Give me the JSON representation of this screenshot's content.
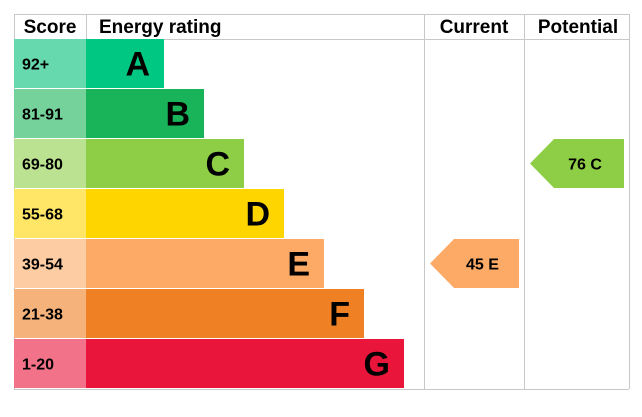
{
  "chart_data": {
    "type": "bar",
    "headers": {
      "score": "Score",
      "rating": "Energy rating",
      "current": "Current",
      "potential": "Potential"
    },
    "bands": [
      {
        "letter": "A",
        "range": "92+",
        "bar_color": "#00c781",
        "score_color": "#66d9ae"
      },
      {
        "letter": "B",
        "range": "81-91",
        "bar_color": "#19b459",
        "score_color": "#75d29b"
      },
      {
        "letter": "C",
        "range": "69-80",
        "bar_color": "#8dce46",
        "score_color": "#bbe290"
      },
      {
        "letter": "D",
        "range": "55-68",
        "bar_color": "#ffd500",
        "score_color": "#ffe666"
      },
      {
        "letter": "E",
        "range": "39-54",
        "bar_color": "#fcaa65",
        "score_color": "#fdcca3"
      },
      {
        "letter": "F",
        "range": "21-38",
        "bar_color": "#ef8023",
        "score_color": "#f5b37b"
      },
      {
        "letter": "G",
        "range": "1-20",
        "bar_color": "#e9153b",
        "score_color": "#f27389"
      }
    ],
    "current": {
      "value": 45,
      "band": "E",
      "label": "45  E",
      "color": "#fcaa65"
    },
    "potential": {
      "value": 76,
      "band": "C",
      "label": "76  C",
      "color": "#8dce46"
    }
  }
}
